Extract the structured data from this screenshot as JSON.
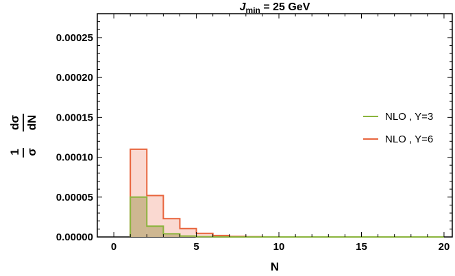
{
  "chart_data": {
    "type": "histogram",
    "title": {
      "main": "J",
      "sub": "min",
      "rest": " = 25 GeV"
    },
    "xlabel": "N",
    "ylabel": {
      "numerator_left": "1",
      "numerator_right": "dσ",
      "denominator_left": "σ",
      "denominator_right": "dN"
    },
    "xlim": [
      -1,
      20.5
    ],
    "ylim": [
      0,
      0.00028
    ],
    "x_ticks": [
      0,
      5,
      10,
      15,
      20
    ],
    "x_tick_labels": [
      "0",
      "5",
      "10",
      "15",
      "20"
    ],
    "y_ticks": [
      0,
      5e-05,
      0.0001,
      0.00015,
      0.0002,
      0.00025
    ],
    "y_tick_labels": [
      "0.00000",
      "0.00005",
      "0.00010",
      "0.00015",
      "0.00020",
      "0.00025"
    ],
    "bin_edges": [
      1,
      2,
      3,
      4,
      5,
      6,
      7,
      8,
      9,
      10,
      11,
      12,
      13,
      14,
      15,
      16,
      17,
      18,
      19,
      20
    ],
    "series": [
      {
        "name": "NLO , Y=6",
        "line_color": "#E8643C",
        "fill_color": "#F7C5B8",
        "values": [
          0.00011,
          5.2e-05,
          2.3e-05,
          1.05e-05,
          4.5e-06,
          1.8e-06,
          8e-07,
          3e-07,
          1e-07,
          0,
          0,
          0,
          0,
          0,
          0,
          0,
          0,
          0,
          0
        ]
      },
      {
        "name": "NLO , Y=3",
        "line_color": "#8AB43C",
        "fill_color": "#C9B38A",
        "values": [
          5e-05,
          1.35e-05,
          4e-06,
          1.2e-06,
          3e-07,
          1e-07,
          0,
          0,
          0,
          0,
          0,
          0,
          0,
          0,
          0,
          0,
          0,
          0,
          0
        ]
      }
    ],
    "legend": {
      "placement": "right",
      "entries": [
        {
          "label": "NLO , Y=3",
          "color": "#8AB43C"
        },
        {
          "label": "NLO , Y=6",
          "color": "#E8643C"
        }
      ]
    }
  }
}
